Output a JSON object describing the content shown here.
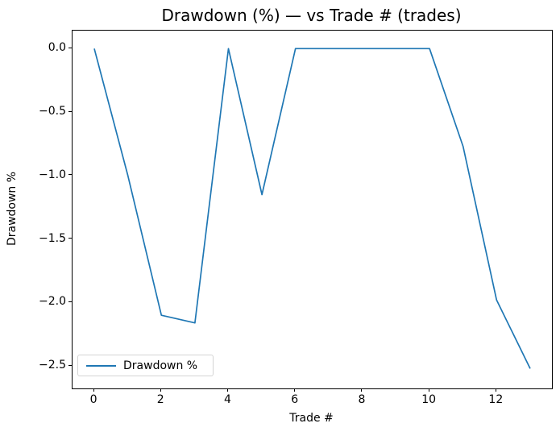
{
  "title": "Drawdown (%) — vs Trade # (trades)",
  "legend": {
    "label": "Drawdown %",
    "position": "lower left"
  },
  "colors": {
    "line": "#1f77b4",
    "background": "#ffffff",
    "spine": "#000000",
    "text": "#000000",
    "legend_border": "#d4d4d4"
  },
  "chart_data": {
    "type": "line",
    "title": "Drawdown (%) — vs Trade # (trades)",
    "xlabel": "Trade #",
    "ylabel": "Drawdown %",
    "x": [
      0,
      1,
      2,
      3,
      4,
      5,
      6,
      7,
      8,
      9,
      10,
      11,
      12,
      13
    ],
    "series": [
      {
        "name": "Drawdown %",
        "values": [
          0.0,
          -1.0,
          -2.1,
          -2.16,
          0.0,
          -1.15,
          0.0,
          0.0,
          0.0,
          0.0,
          0.0,
          -0.77,
          -1.98,
          -2.52
        ]
      }
    ],
    "xticks": {
      "values": [
        0,
        2,
        4,
        6,
        8,
        10,
        12
      ],
      "labels": [
        "0",
        "2",
        "4",
        "6",
        "8",
        "10",
        "12"
      ]
    },
    "yticks": {
      "values": [
        0.0,
        -0.5,
        -1.0,
        -1.5,
        -2.0,
        -2.5
      ],
      "labels": [
        "0.0",
        "−0.5",
        "−1.0",
        "−1.5",
        "−2.0",
        "−2.5"
      ]
    },
    "xlim": [
      -0.65,
      13.65
    ],
    "ylim": [
      -2.676,
      0.1415
    ],
    "grid": false,
    "legend_position": "lower left"
  }
}
